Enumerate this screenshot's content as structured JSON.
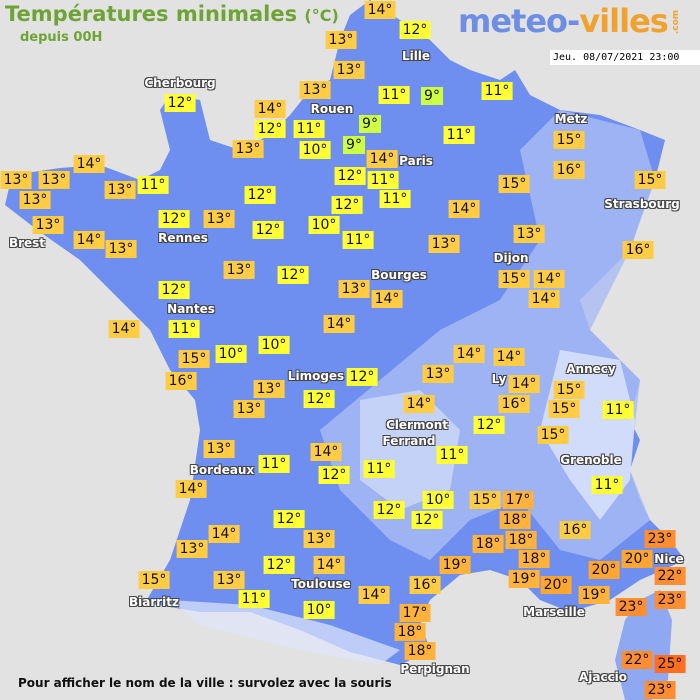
{
  "header": {
    "title": "Températures minimales",
    "unit": "(°C)",
    "subtitle": "depuis 00H",
    "logo": {
      "part1": "meteo-",
      "part2": "villes",
      "part3": ".com"
    },
    "datetime": "Jeu. 08/07/2021 23:00"
  },
  "footer": "Pour afficher le nom de la ville : survolez avec la souris",
  "colors": {
    "sea": "#e2e2e2",
    "land": "#6e8ff0",
    "temp_9": "#ccff44",
    "temp_10_12": "#ffff33",
    "temp_13_16": "#ffcc44",
    "temp_17_19": "#ffb23c",
    "temp_20": "#ffa532",
    "temp_22_23": "#ff8d32",
    "temp_25": "#ff6e22"
  },
  "cities": [
    "Cherbourg",
    "Rouen",
    "Lille",
    "Paris",
    "Metz",
    "Strasbourg",
    "Brest",
    "Rennes",
    "Nantes",
    "Bourges",
    "Dijon",
    "Limoges",
    "Clermont",
    "Ferrand",
    "Ly",
    "Annecy",
    "Grenoble",
    "Bordeaux",
    "Toulouse",
    "Biarritz",
    "Marseille",
    "Nice",
    "Perpignan",
    "Ajaccio"
  ],
  "temperatures": [
    14,
    12,
    13,
    13,
    13,
    14,
    12,
    11,
    10,
    11,
    9,
    9,
    9,
    14,
    11,
    11,
    15,
    16,
    15,
    15,
    12,
    11,
    11,
    12,
    14,
    10,
    11,
    13,
    13,
    16,
    12,
    13,
    12,
    12,
    13,
    12,
    14,
    13,
    13,
    13,
    13,
    11,
    13,
    14,
    13,
    13,
    12,
    12,
    14,
    11,
    15,
    16,
    10,
    10,
    14,
    13,
    14,
    14,
    15,
    14,
    14,
    14,
    14,
    16,
    15,
    15,
    11,
    15,
    13,
    12,
    13,
    13,
    12,
    14,
    12,
    11,
    11,
    14,
    12,
    11,
    13,
    14,
    11,
    12,
    13,
    14,
    13,
    12,
    10,
    12,
    15,
    17,
    18,
    18,
    18,
    16,
    23,
    20,
    18,
    19,
    20,
    20,
    22,
    19,
    16,
    19,
    23,
    23,
    17,
    18,
    18,
    14,
    10,
    14,
    12,
    13,
    11,
    15,
    22,
    25,
    23
  ]
}
